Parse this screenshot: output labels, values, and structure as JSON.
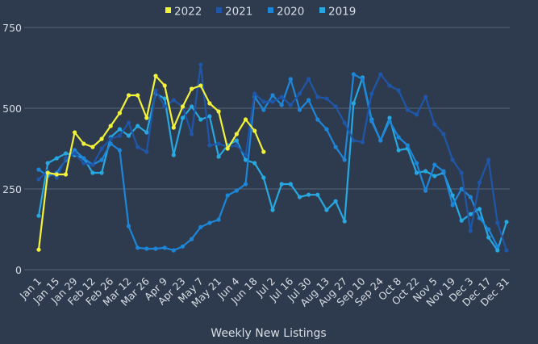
{
  "chart_data": {
    "type": "line",
    "title": "",
    "xlabel": "Weekly New Listings",
    "ylabel": "",
    "ylim": [
      0,
      750
    ],
    "yticks": [
      0,
      250,
      500,
      750
    ],
    "grid": true,
    "legend_position": "top",
    "x_tick_labels": [
      "Jan 1",
      "Jan 15",
      "Jan 29",
      "Feb 12",
      "Feb 26",
      "Mar 12",
      "Mar 26",
      "Apr 9",
      "Apr 23",
      "May 7",
      "May 21",
      "Jun 4",
      "Jun 18",
      "Jul 2",
      "Jul 16",
      "Jul 30",
      "Aug 13",
      "Aug 27",
      "Sep 10",
      "Sep 24",
      "Oct 8",
      "Oct 22",
      "Nov 5",
      "Nov 19",
      "Dec 3",
      "Dec 17",
      "Dec 31"
    ],
    "weeks": 53,
    "series": [
      {
        "name": "2022",
        "color": "#f2f23a",
        "values": [
          62,
          300,
          295,
          295,
          425,
          390,
          380,
          405,
          445,
          485,
          540,
          540,
          470,
          600,
          570,
          440,
          505,
          560,
          570,
          515,
          490,
          375,
          420,
          465,
          430,
          365
        ]
      },
      {
        "name": "2021",
        "color": "#1f56a8",
        "values": [
          280,
          305,
          285,
          345,
          360,
          330,
          325,
          375,
          405,
          415,
          455,
          380,
          365,
          555,
          505,
          525,
          505,
          420,
          635,
          385,
          390,
          380,
          385,
          355,
          545,
          520,
          520,
          535,
          510,
          545,
          590,
          535,
          530,
          505,
          455,
          400,
          395,
          545,
          605,
          570,
          555,
          495,
          480,
          535,
          450,
          420,
          340,
          300,
          120,
          270,
          340,
          145,
          60
        ]
      },
      {
        "name": "2020",
        "color": "#1e86d8",
        "values": [
          310,
          290,
          300,
          340,
          370,
          345,
          325,
          340,
          390,
          370,
          135,
          68,
          65,
          65,
          68,
          60,
          72,
          95,
          132,
          145,
          155,
          230,
          245,
          265,
          535,
          495,
          540,
          510,
          590,
          495,
          525,
          465,
          435,
          380,
          340,
          605,
          590,
          460,
          400,
          460,
          410,
          385,
          330,
          245,
          325,
          305,
          200,
          250,
          225,
          160,
          125,
          72,
          null
        ]
      },
      {
        "name": "2019",
        "color": "#27a8e0",
        "values": [
          167,
          330,
          345,
          360,
          355,
          345,
          300,
          300,
          410,
          435,
          415,
          445,
          425,
          545,
          530,
          355,
          470,
          505,
          465,
          475,
          350,
          385,
          400,
          340,
          330,
          285,
          185,
          265,
          265,
          225,
          232,
          232,
          185,
          212,
          150,
          515,
          595,
          465,
          400,
          470,
          370,
          375,
          300,
          305,
          290,
          300,
          230,
          152,
          172,
          188,
          100,
          60,
          148
        ]
      }
    ]
  }
}
